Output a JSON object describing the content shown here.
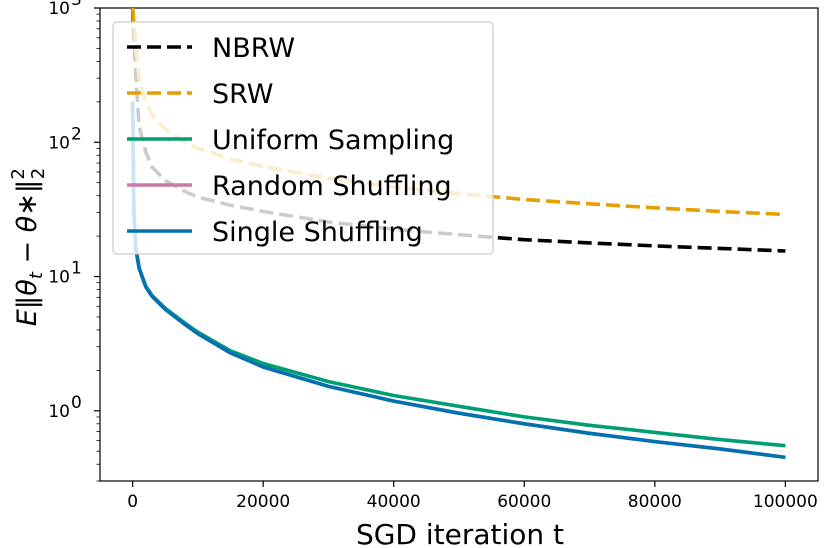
{
  "chart_data": {
    "type": "line",
    "title": "",
    "xlabel": "SGD iteration t",
    "ylabel": "E‖θt − θ*‖₂²",
    "xlim": [
      -5000,
      105000
    ],
    "ylim": [
      0.3,
      1000
    ],
    "yscale": "log",
    "grid": false,
    "legend_position": "top-left",
    "x_ticks": [
      0,
      20000,
      40000,
      60000,
      80000,
      100000
    ],
    "x_tick_labels": [
      "0",
      "20000",
      "40000",
      "60000",
      "80000",
      "100000"
    ],
    "y_ticks": [
      1,
      10,
      100,
      1000
    ],
    "y_tick_base": [
      "10",
      "10",
      "10",
      "10"
    ],
    "y_tick_exponents": [
      "0",
      "1",
      "2",
      "3"
    ],
    "ylabel_parts": {
      "e": "E",
      "open": "‖",
      "theta1": "θ",
      "sub_t": "t",
      "minus": " − ",
      "theta2": "θ",
      "star": "∗",
      "close": "‖",
      "sup": "2",
      "sub": "2"
    },
    "series": [
      {
        "name": "NBRW",
        "color": "#000000",
        "dash": "dashed",
        "x": [
          0,
          500,
          1000,
          2000,
          3000,
          5000,
          8000,
          10000,
          15000,
          20000,
          30000,
          40000,
          50000,
          60000,
          70000,
          80000,
          90000,
          100000
        ],
        "values": [
          1000,
          300,
          130,
          85,
          65,
          52,
          43,
          39,
          34,
          30.5,
          25.5,
          22.5,
          20.5,
          18.8,
          17.8,
          16.9,
          16.2,
          15.5
        ]
      },
      {
        "name": "SRW",
        "color": "#E69F00",
        "dash": "dashed",
        "x": [
          0,
          500,
          1000,
          2000,
          3000,
          5000,
          8000,
          10000,
          15000,
          20000,
          30000,
          40000,
          50000,
          60000,
          70000,
          80000,
          90000,
          100000
        ],
        "values": [
          1000,
          500,
          300,
          200,
          160,
          125,
          100,
          90,
          75,
          66,
          54,
          46.5,
          41.5,
          37.5,
          34.8,
          32.5,
          30.5,
          29.0
        ]
      },
      {
        "name": "Uniform Sampling",
        "color": "#009E73",
        "dash": "solid",
        "x": [
          0,
          200,
          500,
          1000,
          2000,
          3000,
          5000,
          8000,
          10000,
          15000,
          20000,
          30000,
          40000,
          50000,
          60000,
          70000,
          80000,
          90000,
          100000
        ],
        "values": [
          200,
          30,
          16,
          11.5,
          8.5,
          7.2,
          5.8,
          4.5,
          3.85,
          2.8,
          2.25,
          1.65,
          1.3,
          1.08,
          0.9,
          0.78,
          0.69,
          0.61,
          0.55
        ]
      },
      {
        "name": "Random Shuffling",
        "color": "#CC79A7",
        "dash": "solid",
        "x": [
          0,
          200,
          500,
          1000,
          2000,
          3000,
          5000,
          8000,
          10000,
          15000,
          20000,
          30000,
          40000,
          50000,
          60000,
          70000,
          80000,
          90000,
          100000
        ],
        "values": [
          200,
          30,
          16,
          11.5,
          8.4,
          7.1,
          5.7,
          4.4,
          3.75,
          2.7,
          2.12,
          1.52,
          1.18,
          0.96,
          0.8,
          0.68,
          0.59,
          0.52,
          0.45
        ]
      },
      {
        "name": "Single Shuffling",
        "color": "#0072B2",
        "dash": "solid",
        "x": [
          0,
          200,
          500,
          1000,
          2000,
          3000,
          5000,
          8000,
          10000,
          15000,
          20000,
          30000,
          40000,
          50000,
          60000,
          70000,
          80000,
          90000,
          100000
        ],
        "values": [
          200,
          30,
          16,
          11.5,
          8.4,
          7.1,
          5.7,
          4.4,
          3.75,
          2.7,
          2.12,
          1.52,
          1.18,
          0.96,
          0.8,
          0.68,
          0.59,
          0.52,
          0.45
        ]
      }
    ]
  }
}
